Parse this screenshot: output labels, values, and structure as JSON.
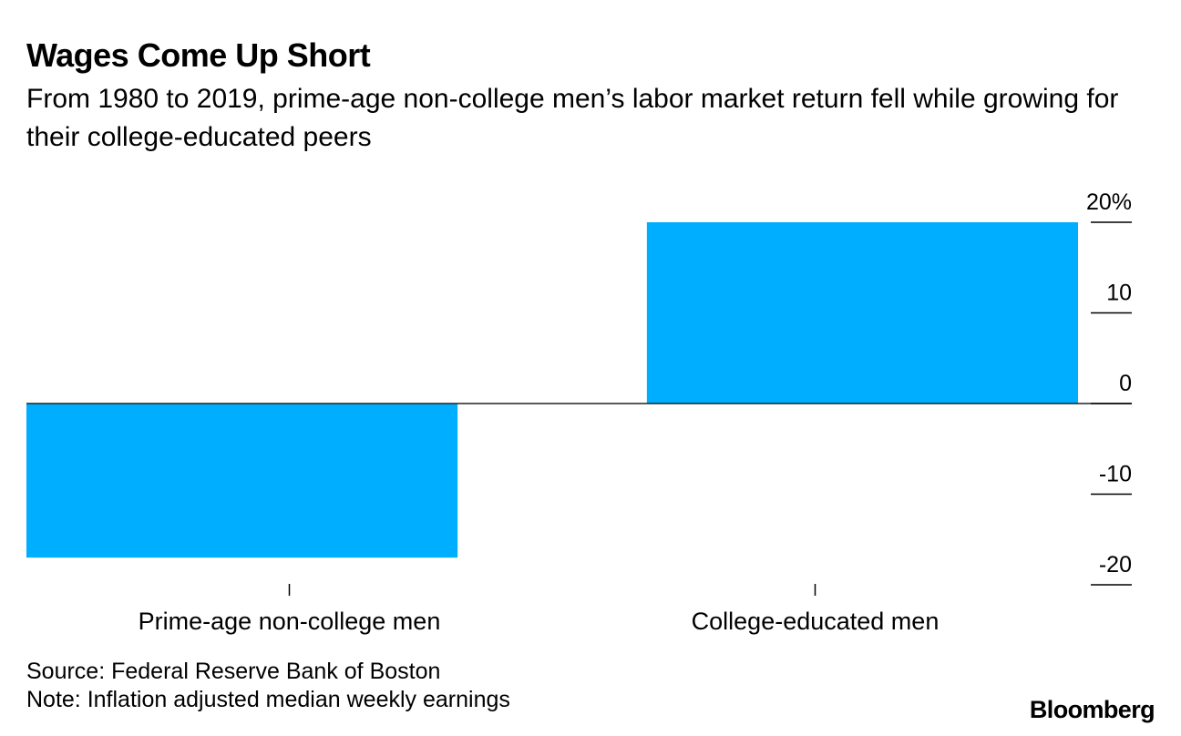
{
  "header": {
    "title": "Wages Come Up Short",
    "subtitle": "From 1980 to 2019, prime-age non-college men’s labor market return fell while growing for their college-educated peers"
  },
  "chart_data": {
    "type": "bar",
    "categories": [
      "Prime-age non-college men",
      "College-educated men"
    ],
    "values": [
      -17,
      20
    ],
    "ylim": [
      -20,
      20
    ],
    "yticks": [
      20,
      10,
      0,
      -10,
      -20
    ],
    "ytick_labels": [
      "20%",
      "10",
      "0",
      "-10",
      "-20"
    ],
    "y_axis_side": "right",
    "grid": false,
    "bar_color": "#00aeff"
  },
  "footer": {
    "source": "Source: Federal Reserve Bank of Boston",
    "note": "Note: Inflation adjusted median weekly earnings"
  },
  "brand": "Bloomberg"
}
